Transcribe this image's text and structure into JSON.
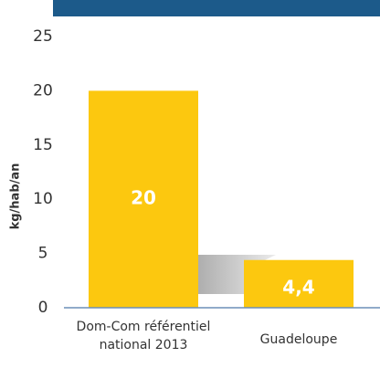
{
  "chart_data": {
    "type": "bar",
    "y_label": "kg/hab/an",
    "categories": [
      "Dom-Com référentiel national 2013",
      "Guadeloupe"
    ],
    "values": [
      20,
      4.4
    ],
    "value_labels": [
      "20",
      "4,4"
    ],
    "color": "#fcc80f",
    "ylim": [
      0,
      25
    ],
    "yticks": [
      0,
      5,
      10,
      15,
      20,
      25
    ]
  }
}
